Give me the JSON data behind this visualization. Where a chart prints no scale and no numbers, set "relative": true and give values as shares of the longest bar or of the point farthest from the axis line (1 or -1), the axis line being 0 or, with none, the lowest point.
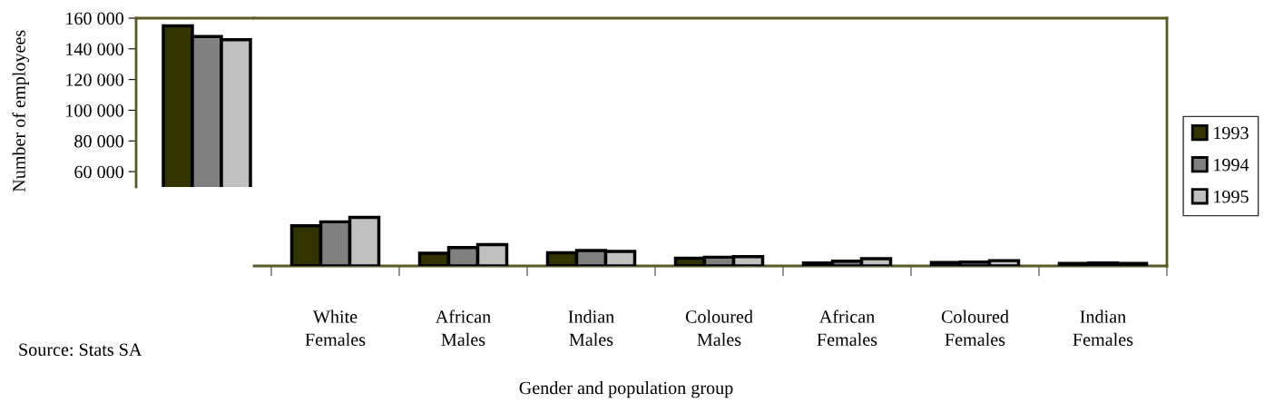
{
  "chart_data": [
    {
      "type": "bar",
      "categories": [
        null
      ],
      "ylabel": "Number of employees",
      "ylim": [
        50000,
        160000
      ],
      "yticks": [
        {
          "value": 60000,
          "label": "60 000"
        },
        {
          "value": 80000,
          "label": "80 000"
        },
        {
          "value": 100000,
          "label": "100 000"
        },
        {
          "value": 120000,
          "label": "120 000"
        },
        {
          "value": 140000,
          "label": "140 000"
        },
        {
          "value": 160000,
          "label": "160 000"
        }
      ],
      "tick_labels": "y",
      "grid": false,
      "legend": "right",
      "series": [
        {
          "name": "1993",
          "color": "#333300",
          "values": [
            155000
          ]
        },
        {
          "name": "1994",
          "color": "#808080",
          "values": [
            148000
          ]
        },
        {
          "name": "1995",
          "color": "#c0c0c0",
          "values": [
            146000
          ]
        }
      ]
    },
    {
      "type": "bar",
      "relative": true,
      "tick_labels": "x",
      "grid": false,
      "categories": [
        "White\nFemales",
        "African\nMales",
        "Indian\nMales",
        "Coloured\nMales",
        "African\nFemales",
        "Coloured\nFemales",
        "Indian\nFemales"
      ],
      "xlabel": "Gender and population group",
      "annotations": [
        "Source: Stats SA"
      ],
      "series": [
        {
          "color": "#333300",
          "values": [
            0.83,
            0.26,
            0.27,
            0.16,
            0.06,
            0.07,
            0.05
          ]
        },
        {
          "color": "#808080",
          "values": [
            0.91,
            0.38,
            0.32,
            0.18,
            0.1,
            0.08,
            0.06
          ]
        },
        {
          "color": "#c0c0c0",
          "values": [
            1.0,
            0.44,
            0.3,
            0.19,
            0.15,
            0.11,
            0.05
          ]
        }
      ]
    }
  ]
}
